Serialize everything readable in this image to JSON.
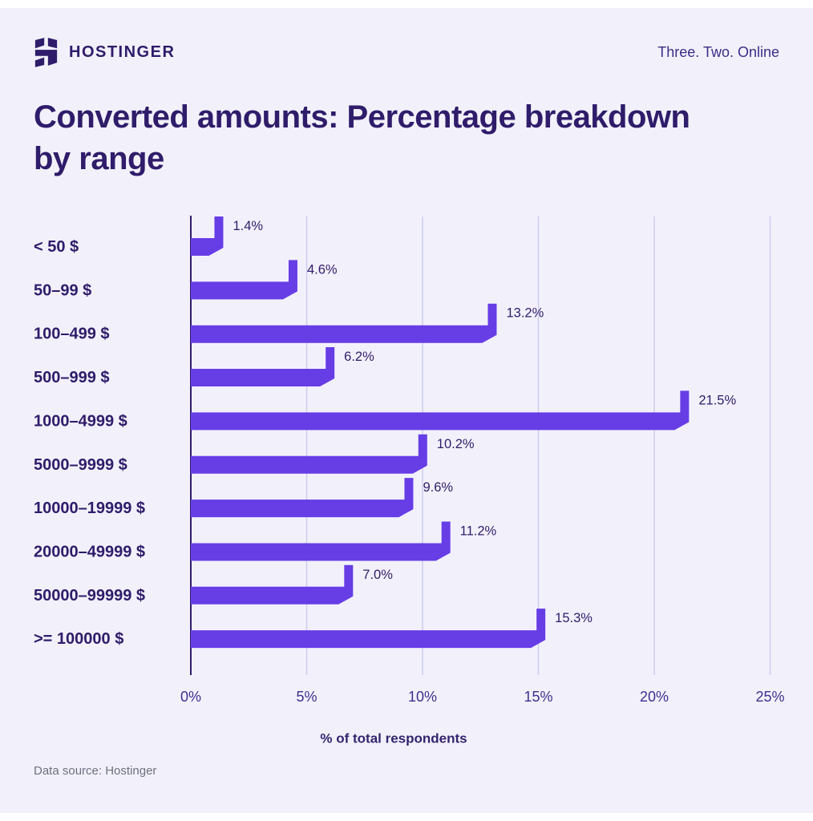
{
  "header": {
    "brand": "HOSTINGER",
    "tagline": "Three. Two. Online",
    "logo_icon": "hostinger-h-icon"
  },
  "title": "Converted amounts: Percentage breakdown\nby range",
  "chart_data": {
    "type": "bar",
    "orientation": "horizontal",
    "title": "Converted amounts: Percentage breakdown by range",
    "categories": [
      "< 50 $",
      "50–99 $",
      "100–499 $",
      "500–999 $",
      "1000–4999 $",
      "5000–9999 $",
      "10000–19999 $",
      "20000–49999 $",
      "50000–99999 $",
      ">= 100000 $"
    ],
    "values": [
      1.4,
      4.6,
      13.2,
      6.2,
      21.5,
      10.2,
      9.6,
      11.2,
      7.0,
      15.3
    ],
    "value_labels": [
      "1.4%",
      "4.6%",
      "13.2%",
      "6.2%",
      "21.5%",
      "10.2%",
      "9.6%",
      "11.2%",
      "7.0%",
      "15.3%"
    ],
    "xlabel": "% of total respondents",
    "x_ticks": [
      "0%",
      "5%",
      "10%",
      "15%",
      "20%",
      "25%"
    ],
    "x_tick_values": [
      0,
      5,
      10,
      15,
      20,
      25
    ],
    "xlim": [
      0,
      25
    ],
    "grid": true,
    "legend": "none",
    "bar_color": "#673DE6",
    "axis_color": "#2F1C6A",
    "grid_color": "#CDCCEE",
    "background_color": "#F2F1FB"
  },
  "footer": {
    "source": "Data source: Hostinger"
  }
}
